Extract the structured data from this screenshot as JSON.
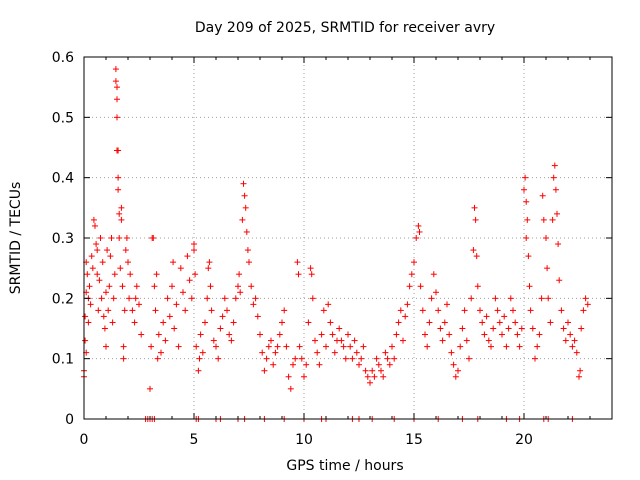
{
  "chart_data": {
    "type": "scatter",
    "title": "Day 209 of 2025, SRMTID for receiver avry",
    "xlabel": "GPS time / hours",
    "ylabel": "SRMTID / TECUs",
    "xlim": [
      0,
      24
    ],
    "ylim": [
      0,
      0.6
    ],
    "x_ticks": [
      0,
      5,
      10,
      15,
      20
    ],
    "x_tick_labels": [
      "0",
      "5",
      "10",
      "15",
      "20"
    ],
    "y_ticks": [
      0,
      0.1,
      0.2,
      0.3,
      0.4,
      0.5,
      0.6
    ],
    "y_tick_labels": [
      "0",
      "0.1",
      "0.2",
      "0.3",
      "0.4",
      "0.5",
      "0.6"
    ],
    "grid": true,
    "marker": "plus",
    "color": "#ff0000",
    "series": [
      {
        "name": "SRMTID",
        "points": [
          [
            0.0,
            0.07
          ],
          [
            0.0,
            0.08
          ],
          [
            0.05,
            0.13
          ],
          [
            0.05,
            0.17
          ],
          [
            0.1,
            0.21
          ],
          [
            0.1,
            0.26
          ],
          [
            0.1,
            0.11
          ],
          [
            0.15,
            0.24
          ],
          [
            0.2,
            0.2
          ],
          [
            0.2,
            0.16
          ],
          [
            0.25,
            0.22
          ],
          [
            0.3,
            0.19
          ],
          [
            0.35,
            0.27
          ],
          [
            0.4,
            0.25
          ],
          [
            0.45,
            0.33
          ],
          [
            0.5,
            0.32
          ],
          [
            0.55,
            0.29
          ],
          [
            0.6,
            0.28
          ],
          [
            0.6,
            0.24
          ],
          [
            0.65,
            0.18
          ],
          [
            0.7,
            0.23
          ],
          [
            0.75,
            0.3
          ],
          [
            0.8,
            0.2
          ],
          [
            0.85,
            0.26
          ],
          [
            0.9,
            0.17
          ],
          [
            0.95,
            0.15
          ],
          [
            1.0,
            0.21
          ],
          [
            1.0,
            0.12
          ],
          [
            1.05,
            0.28
          ],
          [
            1.1,
            0.18
          ],
          [
            1.15,
            0.22
          ],
          [
            1.2,
            0.27
          ],
          [
            1.25,
            0.3
          ],
          [
            1.3,
            0.16
          ],
          [
            1.35,
            0.2
          ],
          [
            1.4,
            0.24
          ],
          [
            1.45,
            0.58
          ],
          [
            1.45,
            0.56
          ],
          [
            1.5,
            0.55
          ],
          [
            1.5,
            0.53
          ],
          [
            1.5,
            0.5
          ],
          [
            1.5,
            0.445
          ],
          [
            1.55,
            0.445
          ],
          [
            1.55,
            0.4
          ],
          [
            1.55,
            0.38
          ],
          [
            1.6,
            0.34
          ],
          [
            1.6,
            0.3
          ],
          [
            1.65,
            0.25
          ],
          [
            1.7,
            0.35
          ],
          [
            1.7,
            0.33
          ],
          [
            1.75,
            0.22
          ],
          [
            1.8,
            0.12
          ],
          [
            1.8,
            0.1
          ],
          [
            1.85,
            0.18
          ],
          [
            1.9,
            0.28
          ],
          [
            1.95,
            0.3
          ],
          [
            2.0,
            0.26
          ],
          [
            2.05,
            0.2
          ],
          [
            2.1,
            0.24
          ],
          [
            2.2,
            0.18
          ],
          [
            2.3,
            0.16
          ],
          [
            2.35,
            0.2
          ],
          [
            2.4,
            0.22
          ],
          [
            2.5,
            0.19
          ],
          [
            2.6,
            0.14
          ],
          [
            3.0,
            0.05
          ],
          [
            3.05,
            0.12
          ],
          [
            3.1,
            0.3
          ],
          [
            3.15,
            0.3
          ],
          [
            3.2,
            0.22
          ],
          [
            3.25,
            0.18
          ],
          [
            3.3,
            0.24
          ],
          [
            3.35,
            0.1
          ],
          [
            3.4,
            0.14
          ],
          [
            3.5,
            0.11
          ],
          [
            3.6,
            0.16
          ],
          [
            3.7,
            0.13
          ],
          [
            3.8,
            0.2
          ],
          [
            3.9,
            0.17
          ],
          [
            4.0,
            0.22
          ],
          [
            4.05,
            0.26
          ],
          [
            4.1,
            0.15
          ],
          [
            4.2,
            0.19
          ],
          [
            4.3,
            0.12
          ],
          [
            4.4,
            0.25
          ],
          [
            4.5,
            0.21
          ],
          [
            4.6,
            0.18
          ],
          [
            4.7,
            0.27
          ],
          [
            4.8,
            0.23
          ],
          [
            4.9,
            0.2
          ],
          [
            5.0,
            0.28
          ],
          [
            5.0,
            0.29
          ],
          [
            5.05,
            0.24
          ],
          [
            5.1,
            0.12
          ],
          [
            5.2,
            0.08
          ],
          [
            5.25,
            0.1
          ],
          [
            5.3,
            0.14
          ],
          [
            5.4,
            0.11
          ],
          [
            5.5,
            0.16
          ],
          [
            5.6,
            0.2
          ],
          [
            5.65,
            0.25
          ],
          [
            5.7,
            0.26
          ],
          [
            5.75,
            0.22
          ],
          [
            5.8,
            0.18
          ],
          [
            5.9,
            0.13
          ],
          [
            6.0,
            0.12
          ],
          [
            6.1,
            0.1
          ],
          [
            6.2,
            0.15
          ],
          [
            6.3,
            0.17
          ],
          [
            6.4,
            0.2
          ],
          [
            6.5,
            0.18
          ],
          [
            6.6,
            0.14
          ],
          [
            6.7,
            0.13
          ],
          [
            6.8,
            0.16
          ],
          [
            6.9,
            0.2
          ],
          [
            7.0,
            0.22
          ],
          [
            7.05,
            0.24
          ],
          [
            7.1,
            0.21
          ],
          [
            7.2,
            0.33
          ],
          [
            7.25,
            0.39
          ],
          [
            7.3,
            0.37
          ],
          [
            7.35,
            0.35
          ],
          [
            7.4,
            0.31
          ],
          [
            7.45,
            0.28
          ],
          [
            7.5,
            0.26
          ],
          [
            7.6,
            0.22
          ],
          [
            7.7,
            0.19
          ],
          [
            7.8,
            0.2
          ],
          [
            7.9,
            0.17
          ],
          [
            8.0,
            0.14
          ],
          [
            8.1,
            0.11
          ],
          [
            8.2,
            0.08
          ],
          [
            8.3,
            0.1
          ],
          [
            8.4,
            0.12
          ],
          [
            8.5,
            0.13
          ],
          [
            8.6,
            0.09
          ],
          [
            8.7,
            0.11
          ],
          [
            8.8,
            0.12
          ],
          [
            8.9,
            0.14
          ],
          [
            9.0,
            0.16
          ],
          [
            9.1,
            0.18
          ],
          [
            9.2,
            0.12
          ],
          [
            9.3,
            0.07
          ],
          [
            9.4,
            0.05
          ],
          [
            9.5,
            0.09
          ],
          [
            9.6,
            0.1
          ],
          [
            9.7,
            0.26
          ],
          [
            9.75,
            0.24
          ],
          [
            9.8,
            0.12
          ],
          [
            9.9,
            0.1
          ],
          [
            10.0,
            0.07
          ],
          [
            10.1,
            0.09
          ],
          [
            10.2,
            0.16
          ],
          [
            10.3,
            0.25
          ],
          [
            10.35,
            0.24
          ],
          [
            10.4,
            0.2
          ],
          [
            10.5,
            0.13
          ],
          [
            10.6,
            0.11
          ],
          [
            10.7,
            0.09
          ],
          [
            10.8,
            0.14
          ],
          [
            10.9,
            0.18
          ],
          [
            11.0,
            0.12
          ],
          [
            11.1,
            0.19
          ],
          [
            11.2,
            0.16
          ],
          [
            11.3,
            0.14
          ],
          [
            11.4,
            0.11
          ],
          [
            11.5,
            0.13
          ],
          [
            11.6,
            0.15
          ],
          [
            11.7,
            0.13
          ],
          [
            11.8,
            0.12
          ],
          [
            11.9,
            0.1
          ],
          [
            12.0,
            0.14
          ],
          [
            12.1,
            0.12
          ],
          [
            12.2,
            0.1
          ],
          [
            12.3,
            0.13
          ],
          [
            12.4,
            0.11
          ],
          [
            12.5,
            0.09
          ],
          [
            12.6,
            0.1
          ],
          [
            12.7,
            0.12
          ],
          [
            12.8,
            0.08
          ],
          [
            12.9,
            0.07
          ],
          [
            13.0,
            0.06
          ],
          [
            13.1,
            0.08
          ],
          [
            13.2,
            0.07
          ],
          [
            13.3,
            0.1
          ],
          [
            13.4,
            0.09
          ],
          [
            13.5,
            0.08
          ],
          [
            13.6,
            0.07
          ],
          [
            13.7,
            0.11
          ],
          [
            13.8,
            0.1
          ],
          [
            13.9,
            0.09
          ],
          [
            14.0,
            0.12
          ],
          [
            14.1,
            0.1
          ],
          [
            14.2,
            0.14
          ],
          [
            14.3,
            0.16
          ],
          [
            14.4,
            0.18
          ],
          [
            14.5,
            0.13
          ],
          [
            14.6,
            0.17
          ],
          [
            14.7,
            0.19
          ],
          [
            14.8,
            0.22
          ],
          [
            14.9,
            0.24
          ],
          [
            15.0,
            0.26
          ],
          [
            15.1,
            0.3
          ],
          [
            15.2,
            0.32
          ],
          [
            15.25,
            0.31
          ],
          [
            15.3,
            0.22
          ],
          [
            15.4,
            0.18
          ],
          [
            15.5,
            0.14
          ],
          [
            15.6,
            0.12
          ],
          [
            15.7,
            0.16
          ],
          [
            15.8,
            0.2
          ],
          [
            15.9,
            0.24
          ],
          [
            16.0,
            0.21
          ],
          [
            16.1,
            0.18
          ],
          [
            16.2,
            0.15
          ],
          [
            16.3,
            0.13
          ],
          [
            16.4,
            0.16
          ],
          [
            16.5,
            0.19
          ],
          [
            16.6,
            0.14
          ],
          [
            16.7,
            0.11
          ],
          [
            16.8,
            0.09
          ],
          [
            16.9,
            0.07
          ],
          [
            17.0,
            0.08
          ],
          [
            17.1,
            0.12
          ],
          [
            17.2,
            0.15
          ],
          [
            17.3,
            0.18
          ],
          [
            17.4,
            0.13
          ],
          [
            17.5,
            0.1
          ],
          [
            17.6,
            0.2
          ],
          [
            17.7,
            0.28
          ],
          [
            17.75,
            0.35
          ],
          [
            17.8,
            0.33
          ],
          [
            17.85,
            0.27
          ],
          [
            17.9,
            0.22
          ],
          [
            18.0,
            0.18
          ],
          [
            18.1,
            0.16
          ],
          [
            18.2,
            0.14
          ],
          [
            18.3,
            0.17
          ],
          [
            18.4,
            0.13
          ],
          [
            18.5,
            0.12
          ],
          [
            18.6,
            0.15
          ],
          [
            18.7,
            0.2
          ],
          [
            18.8,
            0.18
          ],
          [
            18.9,
            0.16
          ],
          [
            19.0,
            0.14
          ],
          [
            19.1,
            0.17
          ],
          [
            19.2,
            0.12
          ],
          [
            19.3,
            0.15
          ],
          [
            19.4,
            0.2
          ],
          [
            19.5,
            0.18
          ],
          [
            19.6,
            0.16
          ],
          [
            19.7,
            0.14
          ],
          [
            19.8,
            0.12
          ],
          [
            19.9,
            0.15
          ],
          [
            20.0,
            0.38
          ],
          [
            20.05,
            0.4
          ],
          [
            20.1,
            0.36
          ],
          [
            20.1,
            0.3
          ],
          [
            20.15,
            0.33
          ],
          [
            20.2,
            0.27
          ],
          [
            20.25,
            0.22
          ],
          [
            20.3,
            0.18
          ],
          [
            20.4,
            0.15
          ],
          [
            20.5,
            0.1
          ],
          [
            20.6,
            0.12
          ],
          [
            20.7,
            0.14
          ],
          [
            20.8,
            0.2
          ],
          [
            20.85,
            0.37
          ],
          [
            20.9,
            0.33
          ],
          [
            21.0,
            0.3
          ],
          [
            21.05,
            0.25
          ],
          [
            21.1,
            0.2
          ],
          [
            21.2,
            0.16
          ],
          [
            21.3,
            0.33
          ],
          [
            21.35,
            0.4
          ],
          [
            21.4,
            0.42
          ],
          [
            21.45,
            0.38
          ],
          [
            21.5,
            0.34
          ],
          [
            21.55,
            0.29
          ],
          [
            21.6,
            0.23
          ],
          [
            21.7,
            0.18
          ],
          [
            21.8,
            0.15
          ],
          [
            21.9,
            0.13
          ],
          [
            22.0,
            0.16
          ],
          [
            22.1,
            0.14
          ],
          [
            22.2,
            0.12
          ],
          [
            22.3,
            0.13
          ],
          [
            22.4,
            0.11
          ],
          [
            22.5,
            0.07
          ],
          [
            22.55,
            0.08
          ],
          [
            22.6,
            0.15
          ],
          [
            22.7,
            0.18
          ],
          [
            22.8,
            0.2
          ],
          [
            22.9,
            0.19
          ]
        ]
      }
    ],
    "zero_points_x": [
      2.8,
      2.9,
      3.0,
      3.1,
      3.2,
      5.1,
      5.2,
      6.0,
      6.2,
      7.0,
      7.3,
      8.2,
      9.1,
      10.0,
      10.8,
      11.0,
      12.2,
      12.5,
      13.1,
      14.1,
      15.0,
      16.1,
      17.2,
      17.9,
      19.2,
      19.8,
      20.9,
      21.1,
      22.2
    ]
  }
}
